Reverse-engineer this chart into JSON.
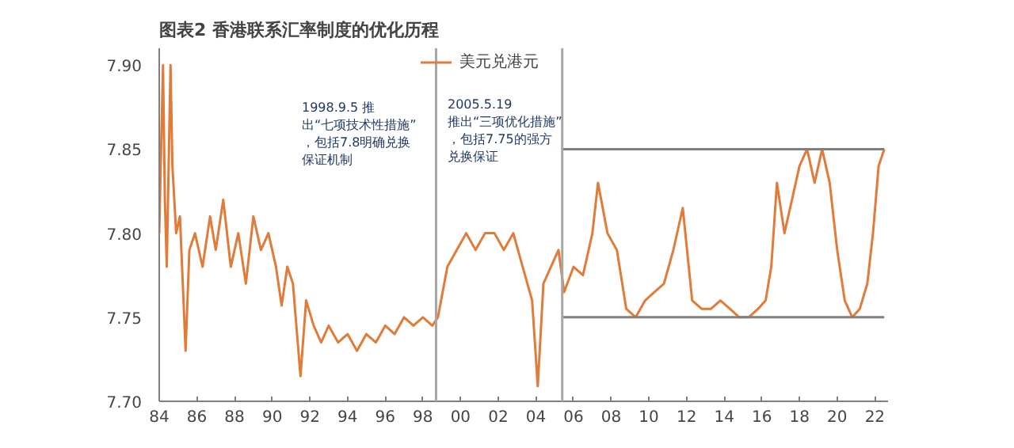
{
  "chart_data": {
    "type": "line",
    "title": "图表2 香港联系汇率制度的优化历程",
    "xlim": [
      1984,
      2022.7
    ],
    "ylim": [
      7.7,
      7.91
    ],
    "xticks": [
      {
        "value": 1984,
        "label": "84"
      },
      {
        "value": 1986,
        "label": "86"
      },
      {
        "value": 1988,
        "label": "88"
      },
      {
        "value": 1990,
        "label": "90"
      },
      {
        "value": 1992,
        "label": "92"
      },
      {
        "value": 1994,
        "label": "94"
      },
      {
        "value": 1996,
        "label": "96"
      },
      {
        "value": 1998,
        "label": "98"
      },
      {
        "value": 2000,
        "label": "00"
      },
      {
        "value": 2002,
        "label": "02"
      },
      {
        "value": 2004,
        "label": "04"
      },
      {
        "value": 2006,
        "label": "06"
      },
      {
        "value": 2008,
        "label": "08"
      },
      {
        "value": 2010,
        "label": "10"
      },
      {
        "value": 2012,
        "label": "12"
      },
      {
        "value": 2014,
        "label": "14"
      },
      {
        "value": 2016,
        "label": "16"
      },
      {
        "value": 2018,
        "label": "18"
      },
      {
        "value": 2020,
        "label": "20"
      },
      {
        "value": 2022,
        "label": "22"
      }
    ],
    "yticks": [
      {
        "value": 7.7,
        "label": "7.70"
      },
      {
        "value": 7.75,
        "label": "7.75"
      },
      {
        "value": 7.8,
        "label": "7.80"
      },
      {
        "value": 7.85,
        "label": "7.85"
      },
      {
        "value": 7.9,
        "label": "7.90"
      }
    ],
    "grid": false,
    "legend": "top",
    "series": [
      {
        "name": "美元兑港元",
        "color": "#e07b39",
        "x": [
          1984.0,
          1984.2,
          1984.3,
          1984.4,
          1984.6,
          1984.7,
          1984.9,
          1985.1,
          1985.4,
          1985.6,
          1985.9,
          1986.3,
          1986.7,
          1987.0,
          1987.4,
          1987.8,
          1988.2,
          1988.6,
          1989.0,
          1989.4,
          1989.8,
          1990.2,
          1990.5,
          1990.8,
          1991.1,
          1991.5,
          1991.8,
          1992.2,
          1992.6,
          1993.0,
          1993.5,
          1994.0,
          1994.5,
          1995.0,
          1995.5,
          1996.0,
          1996.5,
          1997.0,
          1997.5,
          1998.0,
          1998.5,
          1998.8,
          1999.3,
          1999.8,
          2000.3,
          2000.8,
          2001.3,
          2001.8,
          2002.3,
          2002.8,
          2003.3,
          2003.8,
          2004.1,
          2004.4,
          2004.8,
          2005.2,
          2005.5,
          2006.0,
          2006.5,
          2007.0,
          2007.3,
          2007.8,
          2008.3,
          2008.8,
          2009.3,
          2009.8,
          2010.3,
          2010.8,
          2011.3,
          2011.8,
          2012.3,
          2012.8,
          2013.3,
          2013.8,
          2014.3,
          2014.8,
          2015.3,
          2015.8,
          2016.2,
          2016.5,
          2016.8,
          2017.2,
          2017.6,
          2018.0,
          2018.4,
          2018.8,
          2019.2,
          2019.6,
          2020.0,
          2020.4,
          2020.8,
          2021.2,
          2021.6,
          2021.9,
          2022.2,
          2022.5
        ],
        "values": [
          7.8,
          7.9,
          7.82,
          7.78,
          7.9,
          7.84,
          7.8,
          7.81,
          7.73,
          7.79,
          7.8,
          7.78,
          7.81,
          7.79,
          7.82,
          7.78,
          7.8,
          7.77,
          7.81,
          7.79,
          7.8,
          7.78,
          7.757,
          7.78,
          7.77,
          7.715,
          7.76,
          7.745,
          7.735,
          7.745,
          7.735,
          7.74,
          7.73,
          7.74,
          7.735,
          7.745,
          7.74,
          7.75,
          7.745,
          7.75,
          7.745,
          7.75,
          7.78,
          7.79,
          7.8,
          7.79,
          7.8,
          7.8,
          7.79,
          7.8,
          7.78,
          7.76,
          7.709,
          7.77,
          7.78,
          7.79,
          7.765,
          7.78,
          7.775,
          7.8,
          7.83,
          7.8,
          7.79,
          7.755,
          7.75,
          7.76,
          7.765,
          7.77,
          7.79,
          7.815,
          7.76,
          7.755,
          7.755,
          7.76,
          7.755,
          7.75,
          7.75,
          7.755,
          7.76,
          7.78,
          7.83,
          7.8,
          7.82,
          7.84,
          7.85,
          7.83,
          7.85,
          7.83,
          7.79,
          7.76,
          7.75,
          7.755,
          7.77,
          7.8,
          7.84,
          7.85
        ]
      },
      {
        "color": "#7f7f7f",
        "x": [
          2005.4,
          2022.5
        ],
        "values": [
          7.85,
          7.85
        ]
      },
      {
        "color": "#7f7f7f",
        "x": [
          2005.4,
          2022.5
        ],
        "values": [
          7.75,
          7.75
        ]
      }
    ],
    "ref_lines": [
      {
        "axis": "x",
        "value": 1998.7,
        "color": "#a6a6a6"
      },
      {
        "axis": "x",
        "value": 2005.4,
        "color": "#a6a6a6"
      }
    ],
    "annotations": [
      "1998.9.5 推出“七项技术性措施”，包括7.8明确兑换保证机制",
      "2005.5.19 推出“三项优化措施”，包括7.75的强方兑换保证"
    ]
  }
}
